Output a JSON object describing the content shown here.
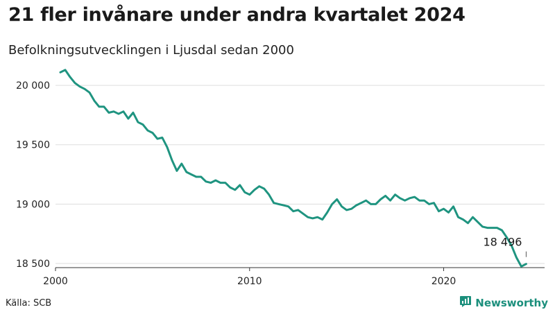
{
  "title": "21 fler invånare under andra kvartalet 2024",
  "subtitle": "Befolkningsutvecklingen i Ljusdal sedan 2000",
  "source": "Källa: SCB",
  "brand": {
    "name": "Newsworthy",
    "icon": "bar-chart-logo-icon"
  },
  "colors": {
    "line": "#1f9480",
    "brand": "#1b8f7c",
    "grid": "#dddddd",
    "text": "#222222"
  },
  "chart_data": {
    "type": "line",
    "title": "21 fler invånare under andra kvartalet 2024",
    "subtitle": "Befolkningsutvecklingen i Ljusdal sedan 2000",
    "xlabel": "",
    "ylabel": "",
    "x_ticks": [
      {
        "value": 2000,
        "label": "2000"
      },
      {
        "value": 2010,
        "label": "2010"
      },
      {
        "value": 2020,
        "label": "2020"
      }
    ],
    "y_ticks": [
      {
        "value": 18500,
        "label": "18 500"
      },
      {
        "value": 19000,
        "label": "19 000"
      },
      {
        "value": 19500,
        "label": "19 500"
      },
      {
        "value": 20000,
        "label": "20 000"
      }
    ],
    "xlim": [
      2000,
      2025.2
    ],
    "ylim": [
      18465,
      20135
    ],
    "grid": "horizontal",
    "series": [
      {
        "values": [
          {
            "x": 2000.25,
            "y": 20110
          },
          {
            "x": 2000.5,
            "y": 20130
          },
          {
            "x": 2000.75,
            "y": 20070
          },
          {
            "x": 2001.0,
            "y": 20020
          },
          {
            "x": 2001.25,
            "y": 19990
          },
          {
            "x": 2001.5,
            "y": 19970
          },
          {
            "x": 2001.75,
            "y": 19940
          },
          {
            "x": 2002.0,
            "y": 19870
          },
          {
            "x": 2002.25,
            "y": 19820
          },
          {
            "x": 2002.5,
            "y": 19820
          },
          {
            "x": 2002.75,
            "y": 19770
          },
          {
            "x": 2003.0,
            "y": 19780
          },
          {
            "x": 2003.25,
            "y": 19760
          },
          {
            "x": 2003.5,
            "y": 19780
          },
          {
            "x": 2003.75,
            "y": 19720
          },
          {
            "x": 2004.0,
            "y": 19770
          },
          {
            "x": 2004.25,
            "y": 19690
          },
          {
            "x": 2004.5,
            "y": 19670
          },
          {
            "x": 2004.75,
            "y": 19620
          },
          {
            "x": 2005.0,
            "y": 19600
          },
          {
            "x": 2005.25,
            "y": 19550
          },
          {
            "x": 2005.5,
            "y": 19560
          },
          {
            "x": 2005.75,
            "y": 19480
          },
          {
            "x": 2006.0,
            "y": 19370
          },
          {
            "x": 2006.25,
            "y": 19280
          },
          {
            "x": 2006.5,
            "y": 19340
          },
          {
            "x": 2006.75,
            "y": 19270
          },
          {
            "x": 2007.0,
            "y": 19250
          },
          {
            "x": 2007.25,
            "y": 19230
          },
          {
            "x": 2007.5,
            "y": 19230
          },
          {
            "x": 2007.75,
            "y": 19190
          },
          {
            "x": 2008.0,
            "y": 19180
          },
          {
            "x": 2008.25,
            "y": 19200
          },
          {
            "x": 2008.5,
            "y": 19180
          },
          {
            "x": 2008.75,
            "y": 19180
          },
          {
            "x": 2009.0,
            "y": 19140
          },
          {
            "x": 2009.25,
            "y": 19120
          },
          {
            "x": 2009.5,
            "y": 19160
          },
          {
            "x": 2009.75,
            "y": 19100
          },
          {
            "x": 2010.0,
            "y": 19080
          },
          {
            "x": 2010.25,
            "y": 19120
          },
          {
            "x": 2010.5,
            "y": 19150
          },
          {
            "x": 2010.75,
            "y": 19130
          },
          {
            "x": 2011.0,
            "y": 19080
          },
          {
            "x": 2011.25,
            "y": 19010
          },
          {
            "x": 2011.5,
            "y": 19000
          },
          {
            "x": 2011.75,
            "y": 18990
          },
          {
            "x": 2012.0,
            "y": 18980
          },
          {
            "x": 2012.25,
            "y": 18940
          },
          {
            "x": 2012.5,
            "y": 18950
          },
          {
            "x": 2012.75,
            "y": 18920
          },
          {
            "x": 2013.0,
            "y": 18890
          },
          {
            "x": 2013.25,
            "y": 18880
          },
          {
            "x": 2013.5,
            "y": 18890
          },
          {
            "x": 2013.75,
            "y": 18870
          },
          {
            "x": 2014.0,
            "y": 18930
          },
          {
            "x": 2014.25,
            "y": 19000
          },
          {
            "x": 2014.5,
            "y": 19040
          },
          {
            "x": 2014.75,
            "y": 18980
          },
          {
            "x": 2015.0,
            "y": 18950
          },
          {
            "x": 2015.25,
            "y": 18960
          },
          {
            "x": 2015.5,
            "y": 18990
          },
          {
            "x": 2015.75,
            "y": 19010
          },
          {
            "x": 2016.0,
            "y": 19030
          },
          {
            "x": 2016.25,
            "y": 19000
          },
          {
            "x": 2016.5,
            "y": 19000
          },
          {
            "x": 2016.75,
            "y": 19040
          },
          {
            "x": 2017.0,
            "y": 19070
          },
          {
            "x": 2017.25,
            "y": 19030
          },
          {
            "x": 2017.5,
            "y": 19080
          },
          {
            "x": 2017.75,
            "y": 19050
          },
          {
            "x": 2018.0,
            "y": 19030
          },
          {
            "x": 2018.25,
            "y": 19050
          },
          {
            "x": 2018.5,
            "y": 19060
          },
          {
            "x": 2018.75,
            "y": 19030
          },
          {
            "x": 2019.0,
            "y": 19030
          },
          {
            "x": 2019.25,
            "y": 19000
          },
          {
            "x": 2019.5,
            "y": 19010
          },
          {
            "x": 2019.75,
            "y": 18940
          },
          {
            "x": 2020.0,
            "y": 18960
          },
          {
            "x": 2020.25,
            "y": 18930
          },
          {
            "x": 2020.5,
            "y": 18980
          },
          {
            "x": 2020.75,
            "y": 18890
          },
          {
            "x": 2021.0,
            "y": 18870
          },
          {
            "x": 2021.25,
            "y": 18840
          },
          {
            "x": 2021.5,
            "y": 18890
          },
          {
            "x": 2021.75,
            "y": 18850
          },
          {
            "x": 2022.0,
            "y": 18810
          },
          {
            "x": 2022.25,
            "y": 18800
          },
          {
            "x": 2022.5,
            "y": 18800
          },
          {
            "x": 2022.75,
            "y": 18800
          },
          {
            "x": 2023.0,
            "y": 18780
          },
          {
            "x": 2023.25,
            "y": 18720
          },
          {
            "x": 2023.5,
            "y": 18650
          },
          {
            "x": 2023.75,
            "y": 18550
          },
          {
            "x": 2024.0,
            "y": 18475
          },
          {
            "x": 2024.25,
            "y": 18496
          }
        ]
      }
    ],
    "annotations": [
      {
        "x": 2024.25,
        "y": 18496,
        "label": "18 496"
      }
    ]
  }
}
